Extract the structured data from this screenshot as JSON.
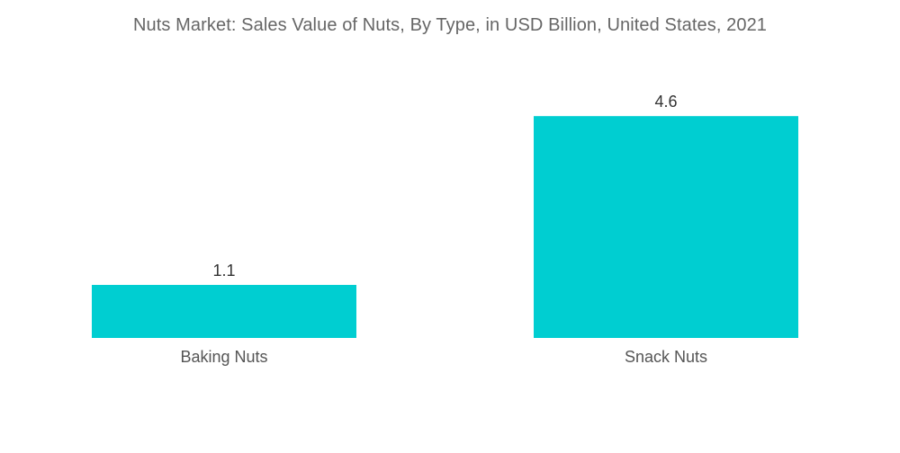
{
  "chart_data": {
    "type": "bar",
    "title": "Nuts Market: Sales Value of Nuts, By Type, in USD Billion, United States, 2021",
    "categories": [
      "Baking Nuts",
      "Snack Nuts"
    ],
    "values": [
      1.1,
      4.6
    ],
    "value_labels": [
      "1.1",
      "4.6"
    ],
    "xlabel": "",
    "ylabel": "",
    "ylim": [
      0,
      5.2
    ],
    "grid": false,
    "legend": "none",
    "colors": {
      "bar": "#00ced1",
      "title": "#666666",
      "labels": "#333333"
    }
  }
}
